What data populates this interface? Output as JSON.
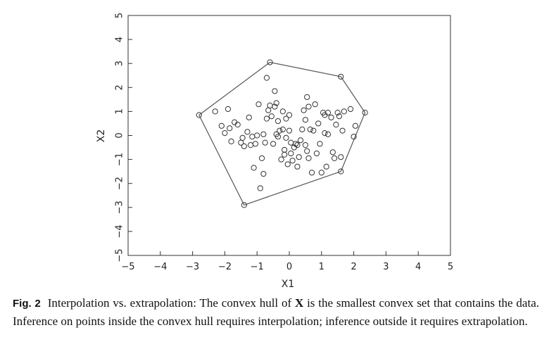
{
  "chart_data": {
    "type": "scatter",
    "xlabel": "X1",
    "ylabel": "X2",
    "xlim": [
      -5,
      5
    ],
    "ylim": [
      -5,
      5
    ],
    "xticks": [
      "−5",
      "−4",
      "−3",
      "−2",
      "−1",
      "0",
      "1",
      "2",
      "3",
      "4",
      "5"
    ],
    "yticks": [
      "−5",
      "−4",
      "−3",
      "−2",
      "−1",
      "0",
      "1",
      "2",
      "3",
      "4",
      "5"
    ],
    "grid": false,
    "hull": [
      [
        -2.8,
        0.85
      ],
      [
        -0.6,
        3.05
      ],
      [
        1.6,
        2.45
      ],
      [
        2.35,
        0.95
      ],
      [
        1.6,
        -1.5
      ],
      [
        -1.4,
        -2.9
      ],
      [
        -2.8,
        0.85
      ]
    ],
    "points": [
      [
        -2.8,
        0.85
      ],
      [
        -0.6,
        3.05
      ],
      [
        1.6,
        2.45
      ],
      [
        2.35,
        0.95
      ],
      [
        1.6,
        -1.5
      ],
      [
        -1.4,
        -2.9
      ],
      [
        -2.3,
        1.0
      ],
      [
        -2.1,
        0.4
      ],
      [
        -2.0,
        0.1
      ],
      [
        -1.9,
        1.1
      ],
      [
        -1.85,
        0.3
      ],
      [
        -1.8,
        -0.25
      ],
      [
        -1.7,
        0.55
      ],
      [
        -1.6,
        0.45
      ],
      [
        -1.5,
        -0.3
      ],
      [
        -1.45,
        -0.1
      ],
      [
        -1.4,
        -0.45
      ],
      [
        -1.3,
        0.15
      ],
      [
        -1.25,
        0.75
      ],
      [
        -1.2,
        -0.4
      ],
      [
        -1.15,
        -0.05
      ],
      [
        -1.1,
        -1.35
      ],
      [
        -1.05,
        -0.35
      ],
      [
        -1.0,
        0.0
      ],
      [
        -0.95,
        1.3
      ],
      [
        -0.9,
        -2.2
      ],
      [
        -0.85,
        -0.95
      ],
      [
        -0.8,
        -1.6
      ],
      [
        -0.8,
        0.05
      ],
      [
        -0.75,
        -0.3
      ],
      [
        -0.7,
        2.4
      ],
      [
        -0.7,
        0.7
      ],
      [
        -0.65,
        1.05
      ],
      [
        -0.6,
        1.25
      ],
      [
        -0.55,
        0.8
      ],
      [
        -0.5,
        -0.35
      ],
      [
        -0.45,
        1.85
      ],
      [
        -0.45,
        1.2
      ],
      [
        -0.4,
        1.35
      ],
      [
        -0.4,
        0.05
      ],
      [
        -0.35,
        0.6
      ],
      [
        -0.3,
        0.2
      ],
      [
        -0.25,
        -1.0
      ],
      [
        -0.2,
        1.0
      ],
      [
        -0.2,
        0.25
      ],
      [
        -0.15,
        -0.6
      ],
      [
        -0.1,
        0.7
      ],
      [
        -0.1,
        -0.1
      ],
      [
        -0.05,
        -1.2
      ],
      [
        0.0,
        0.2
      ],
      [
        0.0,
        0.85
      ],
      [
        0.05,
        -0.3
      ],
      [
        0.05,
        -0.75
      ],
      [
        0.1,
        -1.05
      ],
      [
        0.15,
        -0.5
      ],
      [
        0.2,
        -0.35
      ],
      [
        0.25,
        -1.3
      ],
      [
        0.3,
        -0.9
      ],
      [
        0.35,
        -0.2
      ],
      [
        0.4,
        0.25
      ],
      [
        0.45,
        1.05
      ],
      [
        0.5,
        -0.4
      ],
      [
        0.5,
        0.65
      ],
      [
        0.55,
        1.6
      ],
      [
        0.55,
        -0.65
      ],
      [
        0.6,
        1.2
      ],
      [
        0.6,
        -0.95
      ],
      [
        0.65,
        0.25
      ],
      [
        0.7,
        -1.55
      ],
      [
        0.75,
        0.2
      ],
      [
        0.8,
        1.3
      ],
      [
        0.85,
        -0.75
      ],
      [
        0.9,
        0.5
      ],
      [
        0.95,
        -0.35
      ],
      [
        1.0,
        -1.55
      ],
      [
        1.05,
        0.95
      ],
      [
        1.1,
        0.1
      ],
      [
        1.1,
        0.85
      ],
      [
        1.15,
        -1.3
      ],
      [
        1.2,
        0.95
      ],
      [
        1.3,
        0.75
      ],
      [
        1.35,
        -0.7
      ],
      [
        1.4,
        -0.95
      ],
      [
        1.45,
        0.45
      ],
      [
        1.5,
        0.95
      ],
      [
        1.55,
        0.8
      ],
      [
        1.6,
        -0.9
      ],
      [
        1.65,
        0.2
      ],
      [
        1.7,
        1.0
      ],
      [
        1.9,
        1.1
      ],
      [
        2.0,
        -0.05
      ],
      [
        2.05,
        0.4
      ],
      [
        -0.35,
        -0.05
      ],
      [
        0.25,
        -0.4
      ],
      [
        1.2,
        0.05
      ],
      [
        -0.15,
        -0.8
      ]
    ]
  },
  "caption": {
    "label": "Fig. 2",
    "text_before": "Interpolation vs. extrapolation: The convex hull of ",
    "symbol": "X",
    "text_after": " is the smallest convex set that contains the data. Inference on points inside the convex hull requires interpolation; inference outside it requires extrapolation."
  }
}
